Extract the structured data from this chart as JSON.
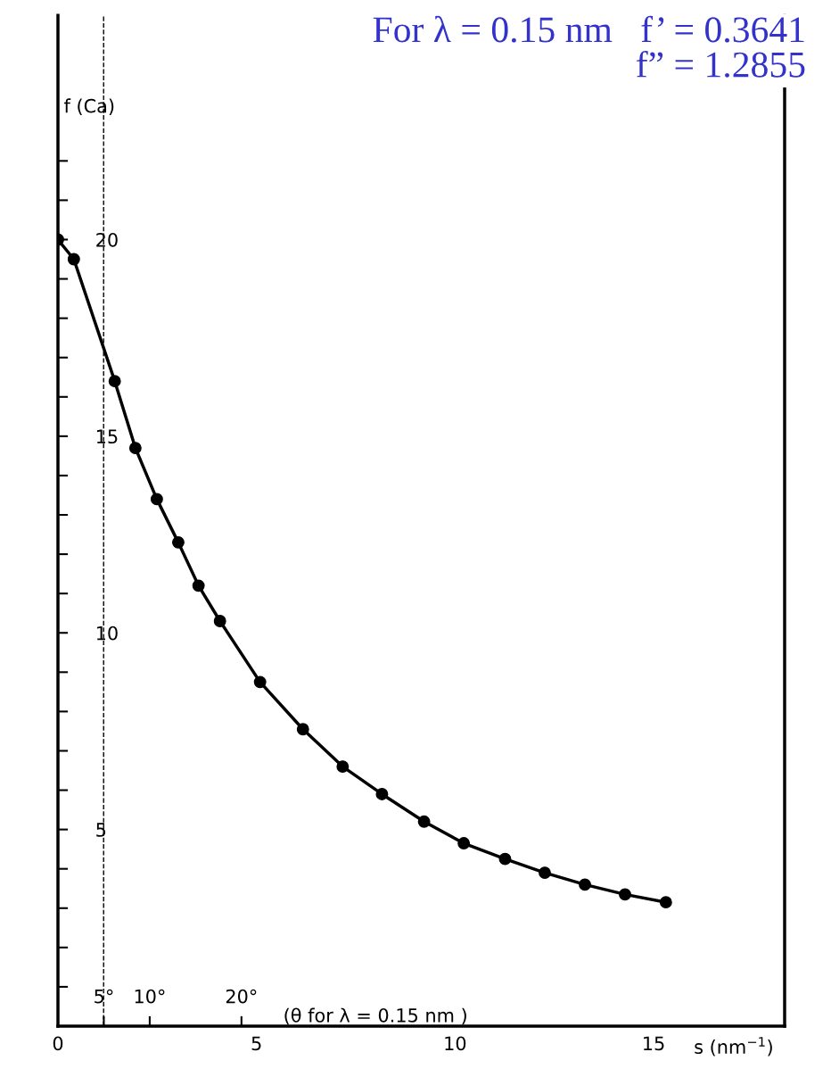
{
  "chart_data": {
    "type": "line",
    "title": "For λ = 0.15 nm   f’ = 0.3641\nf” = 1.2855",
    "xlabel": "s (nm$^{−1}$)",
    "ylabel": "f (Ca)",
    "x2label": "(θ for λ = 0.15 nm )",
    "series": [
      {
        "color": "#000000",
        "x": [
          0,
          0.4,
          1.43,
          1.95,
          2.49,
          3.03,
          3.54,
          4.08,
          5.09,
          6.17,
          7.17,
          8.16,
          9.22,
          10.22,
          11.26,
          12.26,
          13.27,
          14.28,
          15.31
        ],
        "values": [
          20.0,
          19.5,
          16.4,
          14.7,
          13.4,
          12.3,
          11.2,
          10.3,
          8.75,
          7.55,
          6.6,
          5.9,
          5.2,
          4.65,
          4.25,
          3.9,
          3.6,
          3.35,
          3.15
        ]
      }
    ],
    "xlim": [
      0,
      18.3
    ],
    "ylim": [
      0,
      25.7
    ],
    "xticks": [
      0,
      5,
      10,
      15
    ],
    "yticks": [
      {
        "value": 1,
        "label": null
      },
      {
        "value": 2,
        "label": null
      },
      {
        "value": 3,
        "label": null
      },
      {
        "value": 4,
        "label": null
      },
      5,
      {
        "value": 6,
        "label": null
      },
      {
        "value": 7,
        "label": null
      },
      {
        "value": 8,
        "label": null
      },
      {
        "value": 9,
        "label": null
      },
      10,
      {
        "value": 11,
        "label": null
      },
      {
        "value": 12,
        "label": null
      },
      {
        "value": 13,
        "label": null
      },
      {
        "value": 14,
        "label": null
      },
      15,
      {
        "value": 16,
        "label": null
      },
      {
        "value": 17,
        "label": null
      },
      {
        "value": 18,
        "label": null
      },
      {
        "value": 19,
        "label": null
      },
      20,
      {
        "value": 21,
        "label": null
      },
      {
        "value": 22,
        "label": null
      }
    ],
    "x2lim": [
      0,
      79.2
    ],
    "x2ticks": [
      {
        "value": 5,
        "label": "5°"
      },
      {
        "value": 10,
        "label": "10°"
      },
      {
        "value": 20,
        "label": "20°"
      }
    ],
    "ref_lines": [
      {
        "axis": "x",
        "value": 1.15,
        "line_style": "dashed",
        "color": "#000000"
      }
    ],
    "marker": "circle",
    "line_style": "solid",
    "grid": false,
    "legend": false
  }
}
